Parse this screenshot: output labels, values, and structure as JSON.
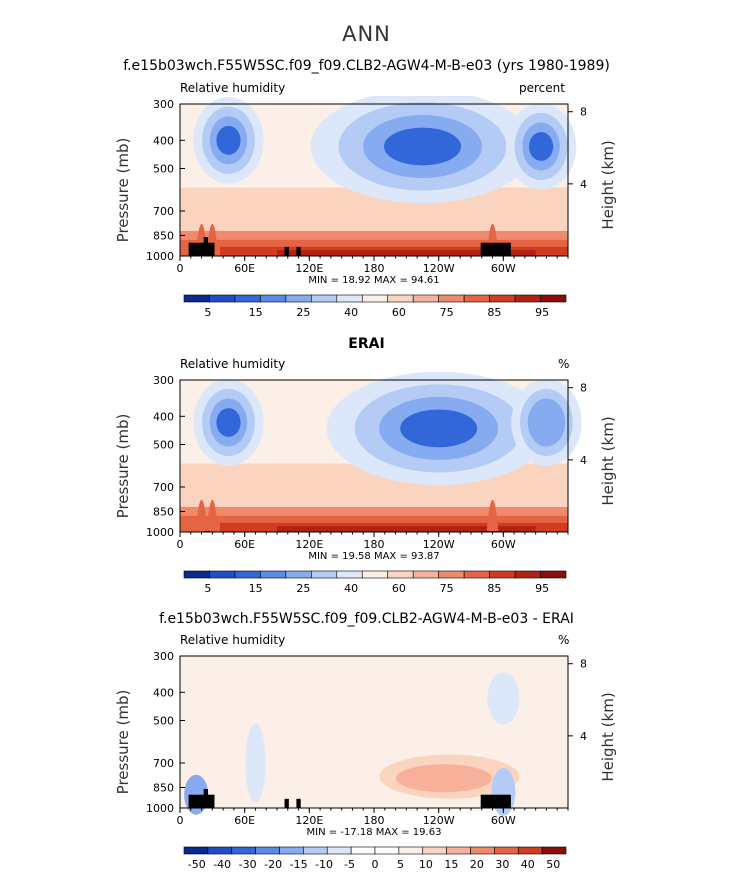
{
  "main_title": "ANN",
  "palette_full": [
    "#0b2a8f",
    "#1f4ec8",
    "#3267d9",
    "#5a8ae8",
    "#86abf0",
    "#b4ccf5",
    "#dce7f9",
    "#fbefe7",
    "#fbd4bf",
    "#f7b19a",
    "#f08a6c",
    "#e56443",
    "#d13c20",
    "#b22214",
    "#8a0e0a"
  ],
  "palette_diff": [
    "#0b2a8f",
    "#1f4ec8",
    "#3267d9",
    "#5a8ae8",
    "#86abf0",
    "#b4ccf5",
    "#dce7f9",
    "#ffffff",
    "#ffffff",
    "#fbefe7",
    "#fbd4bf",
    "#f7b19a",
    "#f08a6c",
    "#e56443",
    "#d13c20",
    "#8a0e0a"
  ],
  "chart_data": [
    {
      "type": "heatmap",
      "title": "f.e15b03wch.F55W5SC.f09_f09.CLB2-AGW4-M-B-e03 (yrs 1980-1989)",
      "variable": "Relative humidity",
      "units": "percent",
      "ylabel": "Pressure (mb)",
      "y2label": "Height (km)",
      "pressure_ticks": [
        "300",
        "400",
        "500",
        "700",
        "850",
        "1000"
      ],
      "height_ticks": [
        "8",
        "4"
      ],
      "lon_ticks": [
        "0",
        "60E",
        "120E",
        "180",
        "120W",
        "60W"
      ],
      "stats": "MIN =   18.92   MAX =   94.61",
      "colorbar_labels": [
        "5",
        "15",
        "25",
        "40",
        "60",
        "75",
        "85",
        "95"
      ],
      "features": [
        {
          "lon": 45,
          "p": 400,
          "value": 20
        },
        {
          "lon": 225,
          "p": 420,
          "value": 18.92
        },
        {
          "lon": 335,
          "p": 420,
          "value": 20
        },
        {
          "lon": 170,
          "p": 930,
          "value": 94.61
        },
        {
          "lon": 300,
          "p": 900,
          "value": 90
        }
      ]
    },
    {
      "type": "heatmap",
      "title": "ERAI",
      "variable": "Relative humidity",
      "units": "%",
      "ylabel": "Pressure (mb)",
      "y2label": "Height (km)",
      "pressure_ticks": [
        "300",
        "400",
        "500",
        "700",
        "850",
        "1000"
      ],
      "height_ticks": [
        "8",
        "4"
      ],
      "lon_ticks": [
        "0",
        "60E",
        "120E",
        "180",
        "120W",
        "60W"
      ],
      "stats": "MIN =   19.58   MAX =   93.87",
      "colorbar_labels": [
        "5",
        "15",
        "25",
        "40",
        "60",
        "75",
        "85",
        "95"
      ],
      "features": [
        {
          "lon": 45,
          "p": 420,
          "value": 20
        },
        {
          "lon": 240,
          "p": 440,
          "value": 19.58
        },
        {
          "lon": 340,
          "p": 420,
          "value": 35
        },
        {
          "lon": 200,
          "p": 960,
          "value": 93.87
        }
      ]
    },
    {
      "type": "heatmap",
      "title": "f.e15b03wch.F55W5SC.f09_f09.CLB2-AGW4-M-B-e03 - ERAI",
      "variable": "Relative humidity",
      "units": "%",
      "ylabel": "Pressure (mb)",
      "y2label": "Height (km)",
      "pressure_ticks": [
        "300",
        "400",
        "500",
        "700",
        "850",
        "1000"
      ],
      "height_ticks": [
        "8",
        "4"
      ],
      "lon_ticks": [
        "0",
        "60E",
        "120E",
        "180",
        "120W",
        "60W"
      ],
      "stats": "MIN =  -17.18   MAX =   19.63",
      "colorbar_labels": [
        "-50",
        "-40",
        "-30",
        "-20",
        "-15",
        "-10",
        "-5",
        "0",
        "5",
        "10",
        "15",
        "20",
        "30",
        "40",
        "50"
      ],
      "features": [
        {
          "lon": 245,
          "p": 780,
          "value": 19.63
        },
        {
          "lon": 20,
          "p": 900,
          "value": -17.18
        },
        {
          "lon": 300,
          "p": 420,
          "value": -5
        }
      ]
    }
  ]
}
